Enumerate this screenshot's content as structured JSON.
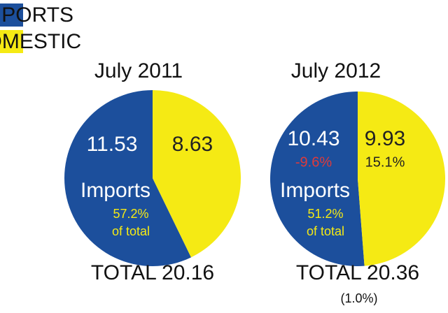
{
  "legend": [
    {
      "name": "IMPORTS",
      "color": "#1c4f9c"
    },
    {
      "name": "DOMESTIC",
      "color": "#f5ea14"
    }
  ],
  "chart_data": [
    {
      "type": "pie",
      "title": "July 2011",
      "values": [
        11.53,
        8.63
      ],
      "slice_label": "Imports",
      "share": "57.2%",
      "share_note": "of total",
      "total_label": "TOTAL",
      "total": 20.16
    },
    {
      "type": "pie",
      "title": "July 2012",
      "values": [
        10.43,
        9.93
      ],
      "value_changes": [
        "-9.6%",
        "15.1%"
      ],
      "slice_label": "Imports",
      "share": "51.2%",
      "share_note": "of total",
      "total_label": "TOTAL",
      "total": 20.36,
      "total_change": "(1.0%)"
    }
  ]
}
